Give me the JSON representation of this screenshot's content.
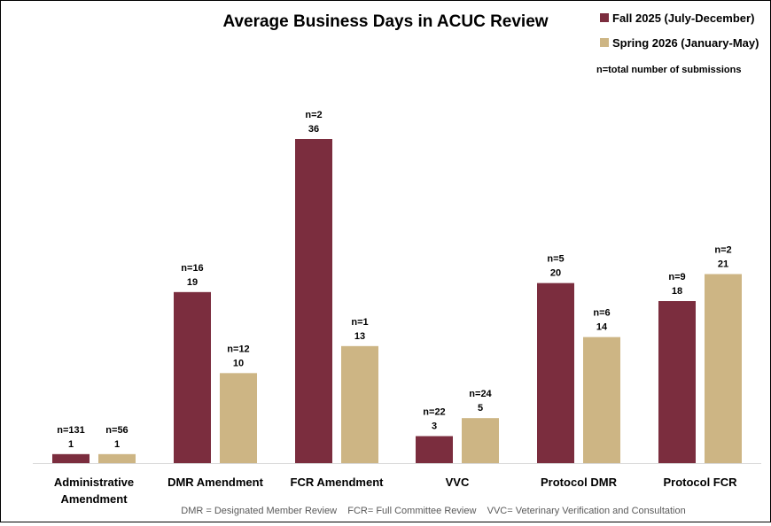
{
  "chart_data": {
    "type": "bar",
    "title": "Average Business Days in ACUC Review",
    "xlabel": "",
    "ylabel": "",
    "ylim": [
      0,
      36
    ],
    "grid": false,
    "legend_position": "top-right",
    "note": "n=total number of submissions",
    "footnote": "DMR = Designated Member Review    FCR= Full Committee Review    VVC= Veterinary Verification and Consultation",
    "categories": [
      [
        "Administrative",
        "Amendment"
      ],
      [
        "DMR Amendment"
      ],
      [
        "FCR Amendment"
      ],
      [
        "VVC"
      ],
      [
        "Protocol DMR"
      ],
      [
        "Protocol FCR"
      ]
    ],
    "series": [
      {
        "name": "Fall 2025 (July-December)",
        "color": "#7B2D3E",
        "values": [
          1,
          19,
          36,
          3,
          20,
          18
        ],
        "n_labels": [
          "n=131",
          "n=16",
          "n=2",
          "n=22",
          "n=5",
          "n=9"
        ]
      },
      {
        "name": "Spring 2026 (January-May)",
        "color": "#CDB584",
        "values": [
          1,
          10,
          13,
          5,
          14,
          21
        ],
        "n_labels": [
          "n=56",
          "n=12",
          "n=1",
          "n=24",
          "n=6",
          "n=2"
        ]
      }
    ]
  }
}
